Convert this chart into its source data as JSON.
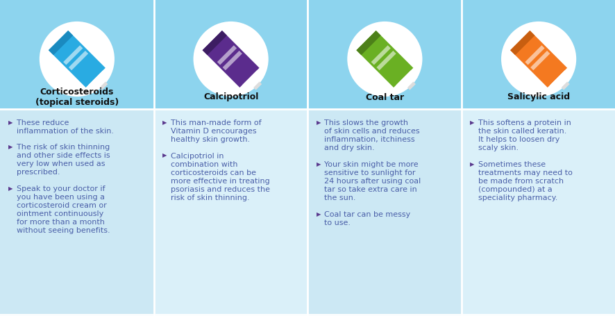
{
  "bg_color": "#8dd4ee",
  "header_bg": "#8dd4ee",
  "body_bg_light": "#cce8f4",
  "body_bg_lighter": "#daf0f9",
  "divider_color": "#ffffff",
  "title_color": "#111111",
  "bullet_color": "#5b3a8e",
  "text_color": "#4a5fa8",
  "figsize": [
    8.87,
    4.56
  ],
  "dpi": 100,
  "columns": [
    {
      "title": "Corticosteroids\n(topical steroids)",
      "tube_color": "#29ABE2",
      "tube_dark": "#1a8abf",
      "bullets": [
        "These reduce\ninflammation of the skin.",
        "The risk of skin thinning\nand other side effects is\nvery low when used as\nprescribed.",
        "Speak to your doctor if\nyou have been using a\ncorticosteroid cream or\nointment continuously\nfor more than a month\nwithout seeing benefits."
      ]
    },
    {
      "title": "Calcipotriol",
      "tube_color": "#5B2C8D",
      "tube_dark": "#3d1d62",
      "bullets": [
        "This man-made form of\nVitamin D encourages\nhealthy skin growth.",
        "Calcipotriol in\ncombination with\ncorticosteroids can be\nmore effective in treating\npsoriasis and reduces the\nrisk of skin thinning."
      ]
    },
    {
      "title": "Coal tar",
      "tube_color": "#6AB023",
      "tube_dark": "#4d8019",
      "bullets": [
        "This slows the growth\nof skin cells and reduces\ninflammation, itchiness\nand dry skin.",
        "Your skin might be more\nsensitive to sunlight for\n24 hours after using coal\ntar so take extra care in\nthe sun.",
        "Coal tar can be messy\nto use."
      ]
    },
    {
      "title": "Salicylic acid",
      "tube_color": "#F47920",
      "tube_dark": "#c85e10",
      "bullets": [
        "This softens a protein in\nthe skin called keratin.\nIt helps to loosen dry\nscaly skin.",
        "Sometimes these\ntreatments may need to\nbe made from scratch\n(compounded) at a\nspeciality pharmacy."
      ]
    }
  ]
}
